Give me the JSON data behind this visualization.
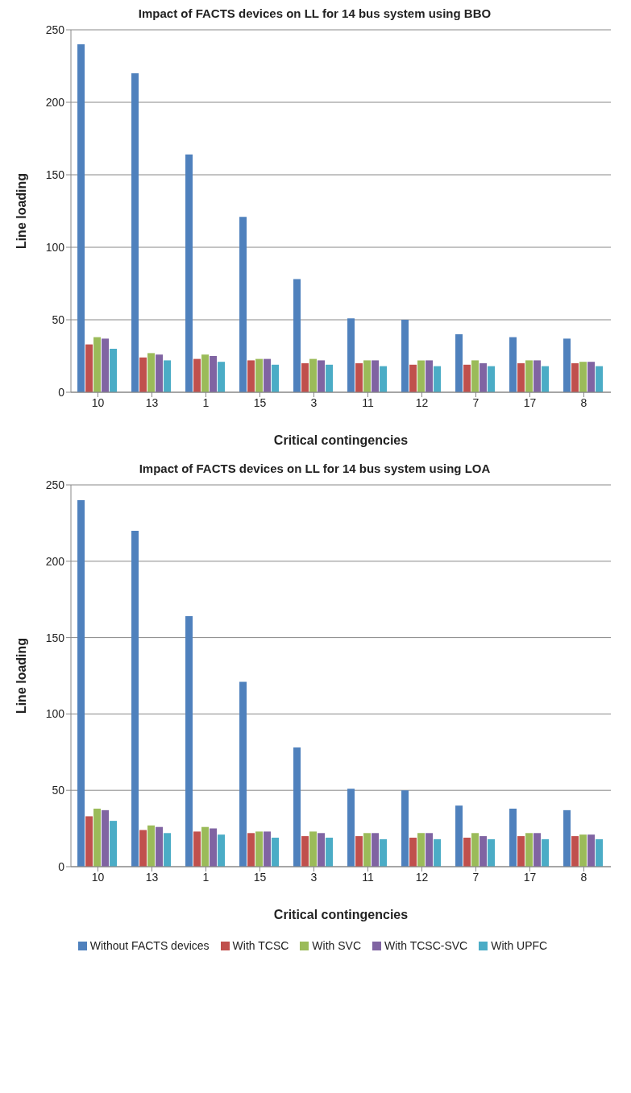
{
  "chart_data": [
    {
      "type": "bar",
      "title": "Impact of FACTS devices on LL for 14 bus system using BBO",
      "xlabel": "Critical contingencies",
      "ylabel": "Line loading",
      "categories": [
        "10",
        "13",
        "1",
        "15",
        "3",
        "11",
        "12",
        "7",
        "17",
        "8"
      ],
      "ylim": [
        0,
        250
      ],
      "yticks": [
        0,
        50,
        100,
        150,
        200,
        250
      ],
      "grid": "y",
      "series": [
        {
          "color": "#4f81bd",
          "values": [
            240,
            220,
            164,
            121,
            78,
            51,
            50,
            40,
            38,
            37
          ]
        },
        {
          "color": "#c0504d",
          "values": [
            33,
            24,
            23,
            22,
            20,
            20,
            19,
            19,
            20,
            20
          ]
        },
        {
          "color": "#9bbb59",
          "values": [
            38,
            27,
            26,
            23,
            23,
            22,
            22,
            22,
            22,
            21
          ]
        },
        {
          "color": "#8064a2",
          "values": [
            37,
            26,
            25,
            23,
            22,
            22,
            22,
            20,
            22,
            21
          ]
        },
        {
          "color": "#4bacc6",
          "values": [
            30,
            22,
            21,
            19,
            19,
            18,
            18,
            18,
            18,
            18
          ]
        }
      ]
    },
    {
      "type": "bar",
      "title": "Impact of FACTS devices on LL for 14 bus system using LOA",
      "xlabel": "Critical contingencies",
      "ylabel": "Line loading",
      "categories": [
        "10",
        "13",
        "1",
        "15",
        "3",
        "11",
        "12",
        "7",
        "17",
        "8"
      ],
      "ylim": [
        0,
        250
      ],
      "yticks": [
        0,
        50,
        100,
        150,
        200,
        250
      ],
      "grid": "y",
      "legend": "bottom",
      "series": [
        {
          "name": "Without FACTS devices",
          "color": "#4f81bd",
          "values": [
            240,
            220,
            164,
            121,
            78,
            51,
            50,
            40,
            38,
            37
          ]
        },
        {
          "name": "With TCSC",
          "color": "#c0504d",
          "values": [
            33,
            24,
            23,
            22,
            20,
            20,
            19,
            19,
            20,
            20
          ]
        },
        {
          "name": "With SVC",
          "color": "#9bbb59",
          "values": [
            38,
            27,
            26,
            23,
            23,
            22,
            22,
            22,
            22,
            21
          ]
        },
        {
          "name": "With TCSC-SVC",
          "color": "#8064a2",
          "values": [
            37,
            26,
            25,
            23,
            22,
            22,
            22,
            20,
            22,
            21
          ]
        },
        {
          "name": "With UPFC",
          "color": "#4bacc6",
          "values": [
            30,
            22,
            21,
            19,
            19,
            18,
            18,
            18,
            18,
            18
          ]
        }
      ]
    }
  ]
}
